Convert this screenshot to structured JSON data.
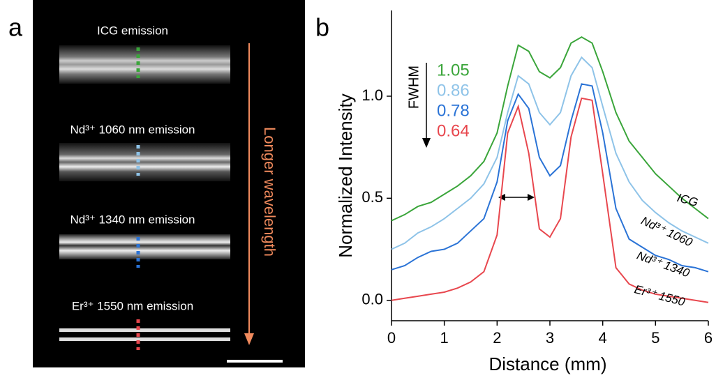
{
  "panel_a": {
    "label": "a",
    "arrow_label": "Longer wavelength",
    "rows": [
      {
        "label": "ICG emission",
        "color": "#3aa53a"
      },
      {
        "label": "Nd³⁺ 1060 nm emission",
        "color": "#8ec3e8"
      },
      {
        "label": "Nd³⁺ 1340 nm emission",
        "color": "#2a73d6"
      },
      {
        "label": "Er³⁺ 1550 nm emission",
        "color": "#e8474e"
      }
    ]
  },
  "chart_data": {
    "type": "line",
    "panel_label": "b",
    "x_label": "Distance (mm)",
    "y_label": "Normalized Intensity",
    "annotation": "FWHM",
    "xlim": [
      0,
      6
    ],
    "xticks": [
      0,
      1,
      2,
      3,
      4,
      5,
      6
    ],
    "ylim": [
      -0.1,
      1.42
    ],
    "yticks": [
      {
        "value": 0,
        "label": "0.0"
      },
      {
        "value": 0.5,
        "label": "0.5"
      },
      {
        "value": 1,
        "label": "1.0"
      }
    ],
    "x": [
      0,
      0.25,
      0.5,
      0.75,
      1,
      1.25,
      1.5,
      1.75,
      2,
      2.2,
      2.4,
      2.6,
      2.8,
      3,
      3.2,
      3.4,
      3.6,
      3.8,
      4,
      4.25,
      4.5,
      4.75,
      5,
      5.25,
      5.5,
      5.75,
      6
    ],
    "series": [
      {
        "name": "ICG",
        "color": "#3aa53a",
        "fwhm": 1.05,
        "values": [
          0.39,
          0.42,
          0.46,
          0.48,
          0.52,
          0.56,
          0.61,
          0.68,
          0.82,
          1.05,
          1.25,
          1.22,
          1.12,
          1.09,
          1.14,
          1.26,
          1.29,
          1.26,
          1.12,
          0.92,
          0.78,
          0.7,
          0.62,
          0.56,
          0.5,
          0.45,
          0.4
        ]
      },
      {
        "name": "Nd³⁺ 1060",
        "color": "#8ec3e8",
        "fwhm": 0.86,
        "values": [
          0.25,
          0.28,
          0.33,
          0.36,
          0.4,
          0.45,
          0.5,
          0.57,
          0.7,
          0.92,
          1.1,
          1.06,
          0.92,
          0.86,
          0.92,
          1.1,
          1.19,
          1.14,
          0.95,
          0.72,
          0.58,
          0.49,
          0.43,
          0.38,
          0.34,
          0.31,
          0.28
        ]
      },
      {
        "name": "Nd³⁺ 1340",
        "color": "#2a73d6",
        "fwhm": 0.78,
        "values": [
          0.15,
          0.17,
          0.21,
          0.24,
          0.25,
          0.28,
          0.34,
          0.4,
          0.58,
          0.88,
          1.01,
          0.94,
          0.7,
          0.61,
          0.66,
          0.88,
          1.06,
          1.05,
          0.82,
          0.45,
          0.3,
          0.26,
          0.22,
          0.2,
          0.17,
          0.16,
          0.14
        ]
      },
      {
        "name": "Er³⁺ 1550",
        "color": "#e8474e",
        "fwhm": 0.64,
        "values": [
          0.0,
          0.01,
          0.02,
          0.03,
          0.04,
          0.06,
          0.09,
          0.14,
          0.32,
          0.82,
          0.95,
          0.72,
          0.35,
          0.31,
          0.4,
          0.8,
          0.99,
          0.98,
          0.62,
          0.16,
          0.08,
          0.05,
          0.03,
          0.02,
          0.01,
          0.0,
          -0.01
        ]
      }
    ]
  }
}
